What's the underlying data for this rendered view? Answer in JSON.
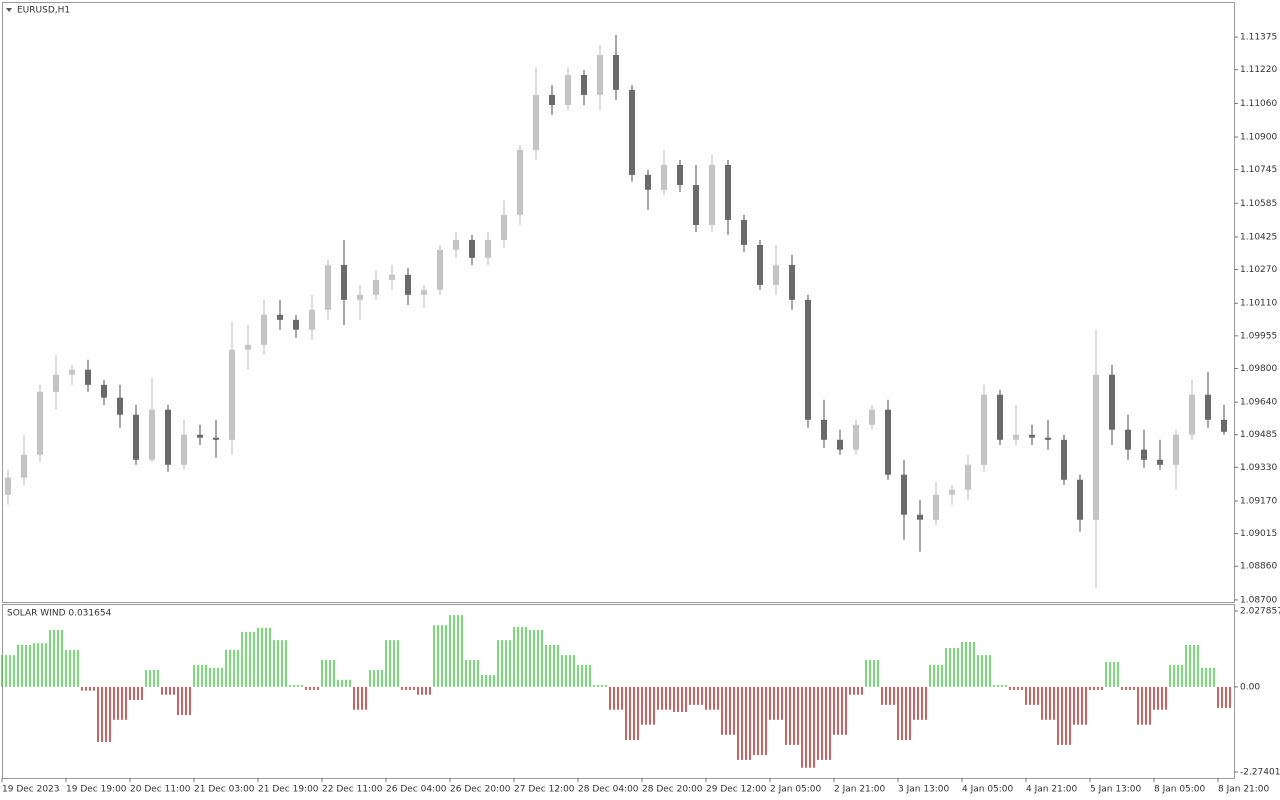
{
  "chart_data": [
    {
      "type": "candlestick",
      "title": "EURUSD,H1",
      "categories": [
        "19 Dec 2023",
        null,
        null,
        null,
        "19 Dec 19:00",
        null,
        null,
        null,
        "20 Dec 11:00",
        null,
        null,
        null,
        "21 Dec 03:00",
        null,
        null,
        null,
        "21 Dec 19:00",
        null,
        null,
        null,
        "22 Dec 11:00",
        null,
        null,
        null,
        "26 Dec 04:00",
        null,
        null,
        null,
        "26 Dec 20:00",
        null,
        null,
        null,
        "27 Dec 12:00",
        null,
        null,
        null,
        "28 Dec 04:00",
        null,
        null,
        null,
        "28 Dec 20:00",
        null,
        null,
        null,
        "29 Dec 12:00",
        null,
        null,
        null,
        "2 Jan 05:00",
        null,
        null,
        null,
        "2 Jan 21:00",
        null,
        null,
        null,
        "3 Jan 13:00",
        null,
        null,
        null,
        "4 Jan 05:00",
        null,
        null,
        null,
        "4 Jan 21:00",
        null,
        null,
        null,
        "5 Jan 13:00",
        null,
        null,
        null,
        "8 Jan 05:00",
        null,
        null,
        null,
        "8 Jan 21:00"
      ],
      "open": [
        1.092,
        1.09281,
        1.0939,
        1.09689,
        1.0977,
        1.09794,
        1.09722,
        1.09661,
        1.0958,
        1.09366,
        1.09604,
        1.09342,
        1.09485,
        1.09471,
        1.09461,
        1.09889,
        1.09912,
        1.10055,
        1.10031,
        1.09984,
        1.10079,
        1.10292,
        1.10126,
        1.1015,
        1.10221,
        1.10245,
        1.1015,
        1.10174,
        1.10364,
        1.10411,
        1.10326,
        1.10411,
        1.1053,
        1.10839,
        1.111,
        1.11052,
        1.11195,
        1.111,
        1.1129,
        1.11124,
        1.1072,
        1.10649,
        1.10767,
        1.10672,
        1.10482,
        1.10767,
        1.10506,
        1.10387,
        1.10197,
        1.10292,
        1.10126,
        1.09556,
        1.09461,
        1.09414,
        1.09532,
        1.09604,
        1.09295,
        1.09105,
        1.09081,
        1.092,
        1.09224,
        1.09342,
        1.09675,
        1.09461,
        1.09485,
        1.09471,
        1.09461,
        1.09271,
        1.09081,
        1.0977,
        1.09509,
        1.09414,
        1.09366,
        1.09342,
        1.09485,
        1.09675,
        1.09556
      ],
      "high": [
        1.09319,
        1.09485,
        1.09722,
        1.09865,
        1.09817,
        1.09841,
        1.09746,
        1.09722,
        1.09627,
        1.09755,
        1.09627,
        1.09556,
        1.09532,
        1.09556,
        1.10022,
        1.10007,
        1.10126,
        1.10126,
        1.10055,
        1.1015,
        1.10316,
        1.10411,
        1.10197,
        1.10269,
        1.10292,
        1.10278,
        1.10197,
        1.10387,
        1.10449,
        1.10435,
        1.10449,
        1.10601,
        1.10862,
        1.11228,
        1.11147,
        1.11228,
        1.11219,
        1.11337,
        1.11385,
        1.11147,
        1.10744,
        1.10839,
        1.10791,
        1.10767,
        1.10815,
        1.10791,
        1.1053,
        1.10411,
        1.10387,
        1.1034,
        1.1015,
        1.09651,
        1.09509,
        1.09556,
        1.09627,
        1.09651,
        1.09366,
        1.09176,
        1.09262,
        1.09247,
        1.0939,
        1.09722,
        1.09699,
        1.09627,
        1.09532,
        1.09556,
        1.09485,
        1.09295,
        1.09984,
        1.09817,
        1.0958,
        1.09509,
        1.09461,
        1.09509,
        1.09746,
        1.09784,
        1.09627
      ],
      "low": [
        1.09152,
        1.09247,
        1.09357,
        1.09604,
        1.09722,
        1.09689,
        1.09627,
        1.09518,
        1.09342,
        1.09357,
        1.09309,
        1.09319,
        1.09437,
        1.09376,
        1.0939,
        1.09794,
        1.09865,
        1.09984,
        1.09946,
        1.09936,
        1.10031,
        1.10007,
        1.10031,
        1.10126,
        1.10174,
        1.10102,
        1.10088,
        1.1015,
        1.10326,
        1.10292,
        1.10292,
        1.10373,
        1.10482,
        1.10791,
        1.11005,
        1.11029,
        1.11052,
        1.11029,
        1.11076,
        1.10687,
        1.10554,
        1.10625,
        1.10639,
        1.10449,
        1.10449,
        1.10435,
        1.10354,
        1.10174,
        1.1015,
        1.10079,
        1.09518,
        1.09423,
        1.0939,
        1.0939,
        1.09509,
        1.09271,
        1.08986,
        1.08929,
        1.09057,
        1.09152,
        1.09176,
        1.09309,
        1.09437,
        1.09437,
        1.09437,
        1.09414,
        1.09247,
        1.09024,
        1.08758,
        1.09437,
        1.09366,
        1.09328,
        1.09319,
        1.09224,
        1.09461,
        1.09518,
        1.09485
      ],
      "close": [
        1.09281,
        1.0939,
        1.09689,
        1.0977,
        1.09794,
        1.09722,
        1.09661,
        1.0958,
        1.09366,
        1.09604,
        1.09342,
        1.09485,
        1.09471,
        1.09461,
        1.09889,
        1.09912,
        1.10055,
        1.10031,
        1.09984,
        1.10079,
        1.10292,
        1.10126,
        1.1015,
        1.10221,
        1.10245,
        1.1015,
        1.10174,
        1.10364,
        1.10411,
        1.10326,
        1.10411,
        1.1053,
        1.10839,
        1.111,
        1.11052,
        1.11195,
        1.111,
        1.1129,
        1.11124,
        1.1072,
        1.10649,
        1.10767,
        1.10672,
        1.10482,
        1.10767,
        1.10506,
        1.10387,
        1.10197,
        1.10292,
        1.10126,
        1.09556,
        1.09461,
        1.09414,
        1.09532,
        1.09604,
        1.09295,
        1.09105,
        1.09081,
        1.092,
        1.09224,
        1.09342,
        1.09675,
        1.09461,
        1.09485,
        1.09471,
        1.09461,
        1.09271,
        1.09081,
        1.0977,
        1.09509,
        1.09414,
        1.09366,
        1.09342,
        1.09485,
        1.09675,
        1.09556,
        1.09499
      ],
      "colors": {
        "up": "#c4c4c4",
        "down": "#6a6a6a"
      },
      "ylim": [
        1.0869,
        1.11537
      ],
      "yticks": [
        1.11375,
        {
          "value": 1.1122,
          "label": "1.11220"
        },
        {
          "value": 1.1106,
          "label": "1.11060"
        },
        {
          "value": 1.109,
          "label": "1.10900"
        },
        1.10745,
        1.10585,
        1.10425,
        {
          "value": 1.1027,
          "label": "1.10270"
        },
        {
          "value": 1.1011,
          "label": "1.10110"
        },
        1.09955,
        {
          "value": 1.098,
          "label": "1.09800"
        },
        {
          "value": 1.0964,
          "label": "1.09640"
        },
        1.09485,
        {
          "value": 1.0933,
          "label": "1.09330"
        },
        {
          "value": 1.0917,
          "label": "1.09170"
        },
        1.09015,
        {
          "value": 1.0886,
          "label": "1.08860"
        },
        {
          "value": 1.087,
          "label": "1.08700"
        }
      ],
      "grid": false
    },
    {
      "type": "histogram-oscillator",
      "title": "SOLAR WIND 0.031654",
      "values": [
        0.85,
        1.12,
        1.17,
        1.52,
        0.99,
        -0.1,
        -1.47,
        -0.88,
        -0.35,
        0.45,
        -0.21,
        -0.75,
        0.59,
        0.51,
        0.99,
        1.47,
        1.58,
        1.25,
        0.05,
        -0.08,
        0.72,
        0.19,
        -0.61,
        0.45,
        1.25,
        -0.08,
        -0.21,
        1.65,
        1.92,
        0.72,
        0.32,
        1.25,
        1.6,
        1.52,
        1.12,
        0.85,
        0.59,
        0.05,
        -0.61,
        -1.42,
        -1.01,
        -0.61,
        -0.67,
        -0.48,
        -0.61,
        -1.28,
        -1.95,
        -1.82,
        -0.88,
        -1.55,
        -2.16,
        -1.95,
        -1.28,
        -0.21,
        0.72,
        -0.48,
        -1.42,
        -0.88,
        0.59,
        1.04,
        1.2,
        0.85,
        0.05,
        -0.08,
        -0.48,
        -0.88,
        -1.55,
        -1.01,
        -0.08,
        0.67,
        -0.08,
        -1.01,
        -0.61,
        0.59,
        1.12,
        0.51,
        -0.56
      ],
      "colors": {
        "positive": "#3dcc3d",
        "negative": "#b52020"
      },
      "ylim": [
        -2.434,
        2.188
      ],
      "yticks": [
        2.027857,
        {
          "value": 0,
          "label": "0.00"
        },
        -2.27401
      ],
      "grid": false
    }
  ]
}
